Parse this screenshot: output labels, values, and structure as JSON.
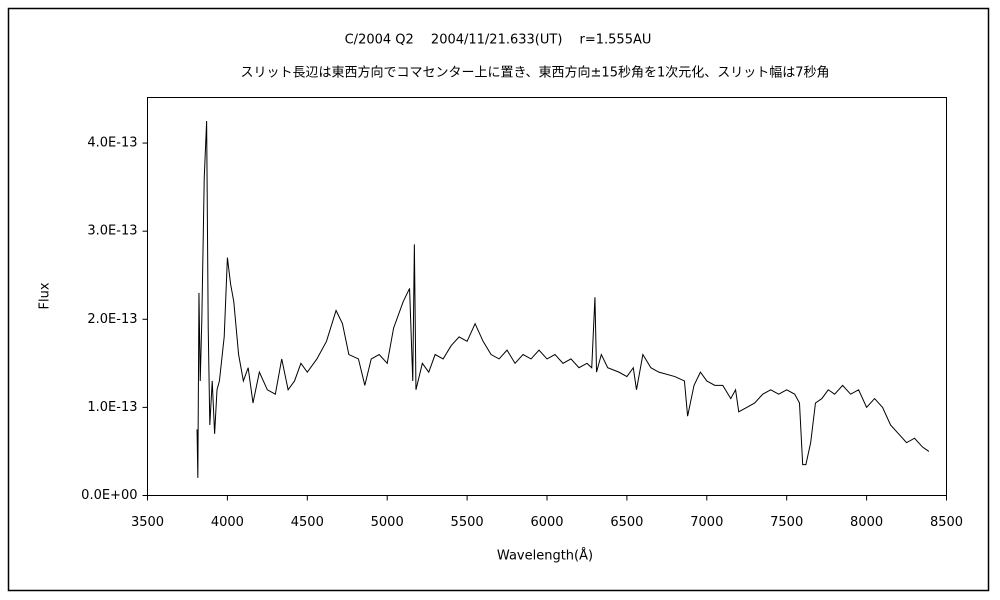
{
  "chart_data": {
    "type": "line",
    "title": "C/2004 Q2　 2004/11/21.633(UT)　 r=1.555AU",
    "subtitle": "スリット長辺は東西方向でコマセンター上に置き、東西方向±15秒角を1次元化、スリット幅は7秒角",
    "x_label": "Wavelength(Å)",
    "y_label": "Flux",
    "color": "#000000",
    "grid": false,
    "xlim": [
      3500,
      8500
    ],
    "xticks": [
      3500,
      4000,
      4500,
      5000,
      5500,
      6000,
      6500,
      7000,
      7500,
      8000,
      8500
    ],
    "ylim": [
      0,
      4.5e-13
    ],
    "yticks": [
      {
        "value": 0,
        "label": "0.0E+00"
      },
      {
        "value": 1e-13,
        "label": "1.0E-13"
      },
      {
        "value": 2e-13,
        "label": "2.0E-13"
      },
      {
        "value": 3e-13,
        "label": "3.0E-13"
      },
      {
        "value": 4e-13,
        "label": "4.0E-13"
      }
    ],
    "x": [
      3810,
      3815,
      3822,
      3830,
      3840,
      3855,
      3870,
      3880,
      3890,
      3905,
      3920,
      3935,
      3950,
      3980,
      4000,
      4020,
      4040,
      4070,
      4100,
      4130,
      4160,
      4200,
      4250,
      4300,
      4340,
      4380,
      4420,
      4460,
      4500,
      4560,
      4620,
      4680,
      4720,
      4760,
      4820,
      4860,
      4900,
      4950,
      5000,
      5040,
      5100,
      5140,
      5160,
      5170,
      5180,
      5220,
      5260,
      5300,
      5350,
      5400,
      5450,
      5500,
      5550,
      5600,
      5650,
      5700,
      5750,
      5800,
      5850,
      5900,
      5950,
      6000,
      6050,
      6100,
      6150,
      6200,
      6250,
      6280,
      6300,
      6310,
      6340,
      6380,
      6450,
      6500,
      6540,
      6560,
      6600,
      6650,
      6700,
      6800,
      6860,
      6880,
      6920,
      6960,
      7000,
      7050,
      7100,
      7150,
      7180,
      7200,
      7250,
      7300,
      7350,
      7400,
      7450,
      7500,
      7550,
      7580,
      7600,
      7620,
      7650,
      7680,
      7720,
      7760,
      7800,
      7850,
      7900,
      7950,
      8000,
      8050,
      8100,
      8150,
      8200,
      8250,
      8300,
      8350,
      8390
    ],
    "values": [
      7.5e-14,
      2e-14,
      2.3e-13,
      1.3e-13,
      2e-13,
      3.6e-13,
      4.25e-13,
      1.9e-13,
      8e-14,
      1.3e-13,
      7e-14,
      1.2e-13,
      1.3e-13,
      1.8e-13,
      2.7e-13,
      2.4e-13,
      2.2e-13,
      1.6e-13,
      1.3e-13,
      1.45e-13,
      1.05e-13,
      1.4e-13,
      1.2e-13,
      1.15e-13,
      1.55e-13,
      1.2e-13,
      1.3e-13,
      1.5e-13,
      1.4e-13,
      1.55e-13,
      1.75e-13,
      2.1e-13,
      1.95e-13,
      1.6e-13,
      1.55e-13,
      1.25e-13,
      1.55e-13,
      1.6e-13,
      1.5e-13,
      1.9e-13,
      2.2e-13,
      2.35e-13,
      1.3e-13,
      2.85e-13,
      1.2e-13,
      1.5e-13,
      1.4e-13,
      1.6e-13,
      1.55e-13,
      1.7e-13,
      1.8e-13,
      1.75e-13,
      1.95e-13,
      1.75e-13,
      1.6e-13,
      1.55e-13,
      1.65e-13,
      1.5e-13,
      1.6e-13,
      1.55e-13,
      1.65e-13,
      1.55e-13,
      1.6e-13,
      1.5e-13,
      1.55e-13,
      1.45e-13,
      1.5e-13,
      1.45e-13,
      2.25e-13,
      1.4e-13,
      1.6e-13,
      1.45e-13,
      1.4e-13,
      1.35e-13,
      1.45e-13,
      1.2e-13,
      1.6e-13,
      1.45e-13,
      1.4e-13,
      1.35e-13,
      1.3e-13,
      9e-14,
      1.25e-13,
      1.4e-13,
      1.3e-13,
      1.25e-13,
      1.25e-13,
      1.1e-13,
      1.2e-13,
      9.5e-14,
      1e-13,
      1.05e-13,
      1.15e-13,
      1.2e-13,
      1.15e-13,
      1.2e-13,
      1.15e-13,
      1.05e-13,
      3.5e-14,
      3.5e-14,
      6e-14,
      1.05e-13,
      1.1e-13,
      1.2e-13,
      1.15e-13,
      1.25e-13,
      1.15e-13,
      1.2e-13,
      1e-13,
      1.1e-13,
      1e-13,
      8e-14,
      7e-14,
      6e-14,
      6.5e-14,
      5.5e-14,
      5e-14
    ]
  }
}
